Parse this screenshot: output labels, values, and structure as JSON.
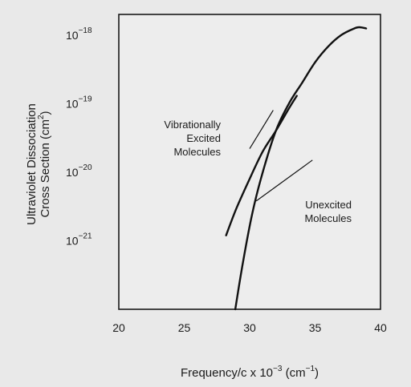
{
  "chart_data": {
    "type": "line",
    "title": "",
    "xlabel": "Frequency/c x 10",
    "xlabel_exp": "−3",
    "xlabel_unit": " (cm",
    "xlabel_unit_exp": "−1",
    "xlabel_close": ")",
    "ylabel_line1": "Ultraviolet Dissociation",
    "ylabel_line2": "Cross Section (cm",
    "ylabel_line2_exp": "2",
    "ylabel_line2_close": ")",
    "xlim": [
      20,
      40
    ],
    "ylim": [
      1e-22,
      2e-18
    ],
    "y_scale": "log",
    "grid": false,
    "legend": "none",
    "x_ticks": [
      {
        "value": 20,
        "label": "20"
      },
      {
        "value": 25,
        "label": "25"
      },
      {
        "value": 30,
        "label": "30"
      },
      {
        "value": 35,
        "label": "35"
      },
      {
        "value": 40,
        "label": "40"
      }
    ],
    "y_ticks": [
      {
        "value": 1e-18,
        "base": "10",
        "exp": "−18"
      },
      {
        "value": 1e-19,
        "base": "10",
        "exp": "−19"
      },
      {
        "value": 1e-20,
        "base": "10",
        "exp": "−20"
      },
      {
        "value": 1e-21,
        "base": "10",
        "exp": "−21"
      }
    ],
    "series": [
      {
        "points": [
          [
            28.9,
            1e-22
          ],
          [
            29.5,
            5e-22
          ],
          [
            30.2,
            2.5e-21
          ],
          [
            31.0,
            1e-20
          ],
          [
            32.0,
            4e-20
          ],
          [
            33.0,
            1e-19
          ],
          [
            34.0,
            2e-19
          ],
          [
            35.0,
            4e-19
          ],
          [
            36.0,
            6.8e-19
          ],
          [
            37.0,
            1e-18
          ],
          [
            38.0,
            1.25e-18
          ],
          [
            38.4,
            1.3e-18
          ],
          [
            38.9,
            1.25e-18
          ]
        ]
      },
      {
        "points": [
          [
            28.2,
            1.2e-21
          ],
          [
            29.0,
            3e-21
          ],
          [
            30.0,
            8e-21
          ],
          [
            31.0,
            2e-20
          ],
          [
            32.0,
            4e-20
          ],
          [
            33.0,
            8.5e-20
          ],
          [
            33.6,
            1.3e-19
          ]
        ]
      }
    ],
    "annotations": [
      {
        "id": "vibrationally-excited",
        "lines": [
          "Vibrationally",
          "Excited",
          "Molecules"
        ],
        "leader_from": [
          31.8,
          8e-20
        ],
        "leader_to": [
          30.0,
          2.2e-20
        ]
      },
      {
        "id": "unexcited",
        "lines": [
          "Unexcited",
          "Molecules"
        ],
        "leader_from": [
          34.8,
          1.5e-20
        ],
        "leader_to": [
          30.5,
          3.8e-21
        ]
      }
    ]
  }
}
